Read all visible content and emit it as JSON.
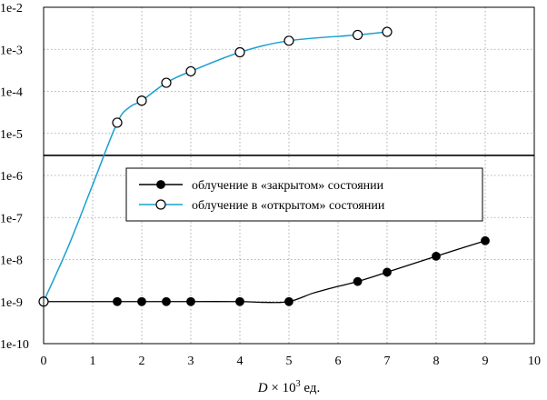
{
  "chart_data": {
    "type": "line",
    "xlabel": {
      "italic": "D",
      "pre": " × 10",
      "sup": "3",
      "post": " ед."
    },
    "xlim": [
      0,
      10
    ],
    "ylim": [
      1e-10,
      0.01
    ],
    "yscale": "log",
    "x_ticks": [
      0,
      1,
      2,
      3,
      4,
      5,
      6,
      7,
      8,
      9,
      10
    ],
    "y_ticks": [
      "1e-2",
      "1e-3",
      "1e-4",
      "1e-5",
      "1e-6",
      "1e-7",
      "1e-8",
      "1e-9",
      "1e-10"
    ],
    "grid": true,
    "legend_position": "center-right",
    "reference_line_y": 3e-06,
    "series": [
      {
        "name": "облучение в «закрытом» состоянии",
        "marker": "filled-circle",
        "color": "#000000",
        "points": [
          [
            0,
            1e-09
          ],
          [
            1.5,
            1e-09
          ],
          [
            2,
            1e-09
          ],
          [
            2.5,
            1e-09
          ],
          [
            3,
            1e-09
          ],
          [
            4,
            1e-09
          ],
          [
            5,
            1e-09
          ],
          [
            6.4,
            3e-09
          ],
          [
            7,
            5e-09
          ],
          [
            8,
            1.2e-08
          ],
          [
            9,
            2.8e-08
          ]
        ],
        "curve": [
          [
            0,
            1e-09
          ],
          [
            1.5,
            1e-09
          ],
          [
            2,
            1e-09
          ],
          [
            2.5,
            1e-09
          ],
          [
            3,
            1e-09
          ],
          [
            4,
            1e-09
          ],
          [
            4.5,
            9.6e-10
          ],
          [
            5,
            1e-09
          ],
          [
            5.5,
            1.6e-09
          ],
          [
            6,
            2.3e-09
          ],
          [
            6.4,
            3e-09
          ],
          [
            7,
            5e-09
          ],
          [
            8,
            1.2e-08
          ],
          [
            9,
            2.8e-08
          ]
        ]
      },
      {
        "name": "облучение в «открытом» состоянии",
        "marker": "open-circle",
        "color": "#1aa0cf",
        "points": [
          [
            0,
            1e-09
          ],
          [
            1.5,
            1.8e-05
          ],
          [
            2,
            6e-05
          ],
          [
            2.5,
            0.00016
          ],
          [
            3,
            0.0003
          ],
          [
            4,
            0.00085
          ],
          [
            5,
            0.0016
          ],
          [
            6.4,
            0.0022
          ],
          [
            7,
            0.0026
          ]
        ],
        "curve": [
          [
            0,
            1e-09
          ],
          [
            0.5,
            2e-08
          ],
          [
            1,
            6e-07
          ],
          [
            1.5,
            1.8e-05
          ],
          [
            1.75,
            4.2e-05
          ],
          [
            2,
            6e-05
          ],
          [
            2.5,
            0.00016
          ],
          [
            3,
            0.0003
          ],
          [
            4,
            0.00085
          ],
          [
            5,
            0.0016
          ],
          [
            6.4,
            0.0022
          ],
          [
            7,
            0.0026
          ]
        ]
      }
    ]
  }
}
